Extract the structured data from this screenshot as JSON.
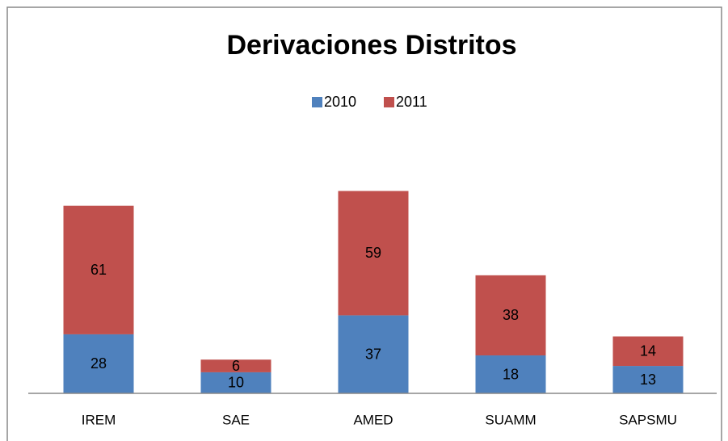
{
  "chart_data": {
    "type": "bar",
    "stacked": true,
    "title": "Derivaciones Distritos",
    "categories": [
      "IREM",
      "SAE",
      "AMED",
      "SUAMM",
      "SAPSMU"
    ],
    "series": [
      {
        "name": "2010",
        "color": "#4f81bd",
        "values": [
          28,
          10,
          37,
          18,
          13
        ]
      },
      {
        "name": "2011",
        "color": "#c0504d",
        "values": [
          61,
          6,
          59,
          38,
          14
        ]
      }
    ],
    "legend": "top"
  }
}
